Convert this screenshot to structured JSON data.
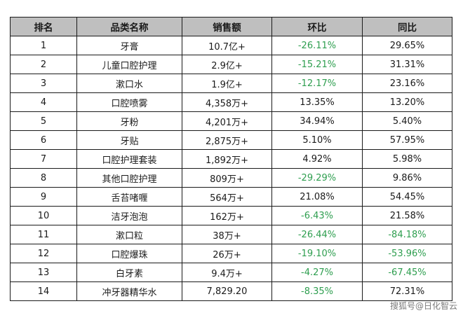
{
  "table": {
    "headers": [
      "排名",
      "品类名称",
      "销售额",
      "环比",
      "同比"
    ],
    "rows": [
      {
        "rank": "1",
        "category": "牙膏",
        "sales": "10.7亿+",
        "mom": "-26.11%",
        "yoy": "29.65%"
      },
      {
        "rank": "2",
        "category": "儿童口腔护理",
        "sales": "2.9亿+",
        "mom": "-15.21%",
        "yoy": "31.31%"
      },
      {
        "rank": "3",
        "category": "漱口水",
        "sales": "1.9亿+",
        "mom": "-12.17%",
        "yoy": "23.16%"
      },
      {
        "rank": "4",
        "category": "口腔喷雾",
        "sales": "4,358万+",
        "mom": "13.35%",
        "yoy": "13.20%"
      },
      {
        "rank": "5",
        "category": "牙粉",
        "sales": "4,201万+",
        "mom": "34.94%",
        "yoy": "5.40%"
      },
      {
        "rank": "6",
        "category": "牙贴",
        "sales": "2,875万+",
        "mom": "5.10%",
        "yoy": "57.95%"
      },
      {
        "rank": "7",
        "category": "口腔护理套装",
        "sales": "1,892万+",
        "mom": "4.92%",
        "yoy": "5.98%"
      },
      {
        "rank": "8",
        "category": "其他口腔护理",
        "sales": "809万+",
        "mom": "-29.29%",
        "yoy": "9.86%"
      },
      {
        "rank": "9",
        "category": "舌苔啫喱",
        "sales": "564万+",
        "mom": "21.08%",
        "yoy": "54.45%"
      },
      {
        "rank": "10",
        "category": "洁牙泡泡",
        "sales": "162万+",
        "mom": "-6.43%",
        "yoy": "21.58%"
      },
      {
        "rank": "11",
        "category": "漱口粒",
        "sales": "38万+",
        "mom": "-26.44%",
        "yoy": "-84.18%"
      },
      {
        "rank": "12",
        "category": "口腔爆珠",
        "sales": "26万+",
        "mom": "-19.10%",
        "yoy": "-53.96%"
      },
      {
        "rank": "13",
        "category": "白牙素",
        "sales": "9.4万+",
        "mom": "-4.27%",
        "yoy": "-67.45%"
      },
      {
        "rank": "14",
        "category": "冲牙器精华水",
        "sales": "7,829.20",
        "mom": "-8.35%",
        "yoy": "72.31%"
      }
    ]
  },
  "colors": {
    "negative": "#2e9e4f",
    "header_bg": "#bfbfbf"
  },
  "watermark": "搜狐号@日化智云"
}
